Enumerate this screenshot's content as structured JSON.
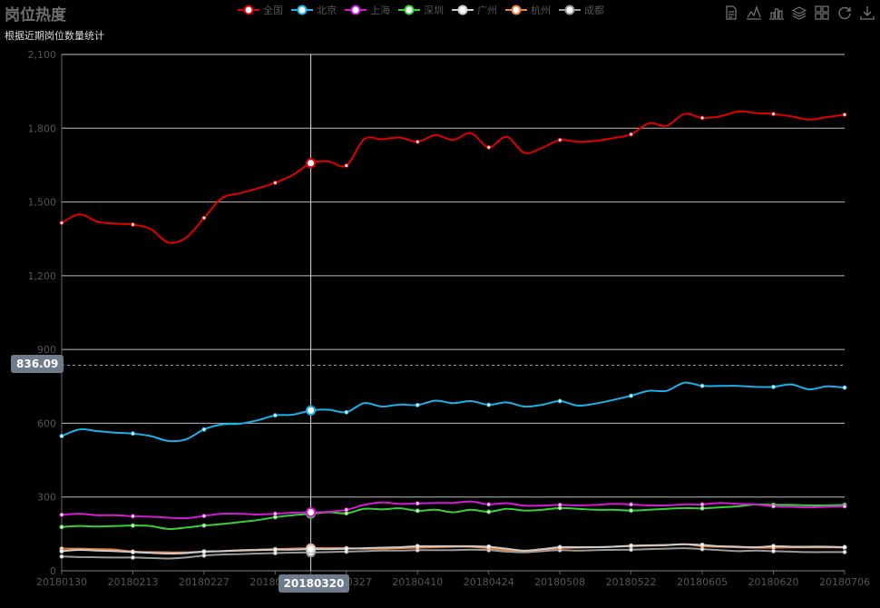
{
  "title": "岗位热度",
  "subtitle": "根据近期岗位数量统计",
  "toolbox": [
    "data-view-icon",
    "line-chart-icon",
    "bar-chart-icon",
    "stack-icon",
    "tiled-icon",
    "restore-icon",
    "download-icon"
  ],
  "pointer": {
    "y_label": "836.09",
    "x_label": "20180320"
  },
  "chart_data": {
    "type": "line",
    "smooth": true,
    "title": "岗位热度",
    "subtitle": "根据近期岗位数量统计",
    "xlabel": "",
    "ylabel": "",
    "ylim": [
      0,
      2100
    ],
    "yticks": [
      0,
      300,
      600,
      900,
      1200,
      1500,
      1800,
      2100
    ],
    "ytick_labels": [
      "0",
      "300",
      "600",
      "900",
      "1,200",
      "1,500",
      "1,800",
      "2,100"
    ],
    "grid": true,
    "legend_position": "top-center",
    "xtick_labels": [
      "20180130",
      "20180213",
      "20180227",
      "20180313",
      "20180320",
      "20180327",
      "20180410",
      "20180424",
      "20180508",
      "20180522",
      "20180605",
      "20180620",
      "20180706"
    ],
    "x": [
      "20180130",
      "20180203",
      "20180206",
      "20180209",
      "20180213",
      "20180216",
      "20180219",
      "20180223",
      "20180227",
      "20180302",
      "20180306",
      "20180309",
      "20180313",
      "20180316",
      "20180320",
      "20180323",
      "20180327",
      "20180330",
      "20180403",
      "20180406",
      "20180410",
      "20180413",
      "20180417",
      "20180420",
      "20180424",
      "20180427",
      "20180501",
      "20180504",
      "20180508",
      "20180511",
      "20180515",
      "20180518",
      "20180522",
      "20180525",
      "20180529",
      "20180601",
      "20180605",
      "20180608",
      "20180612",
      "20180616",
      "20180620",
      "20180623",
      "20180627",
      "20180630",
      "20180706"
    ],
    "series": [
      {
        "name": "全国",
        "color": "#e00000",
        "values": [
          1415,
          1450,
          1420,
          1412,
          1408,
          1390,
          1335,
          1355,
          1435,
          1515,
          1535,
          1555,
          1578,
          1610,
          1658,
          1665,
          1648,
          1755,
          1755,
          1762,
          1745,
          1772,
          1752,
          1780,
          1722,
          1765,
          1700,
          1720,
          1752,
          1745,
          1748,
          1760,
          1775,
          1820,
          1810,
          1858,
          1842,
          1848,
          1868,
          1862,
          1858,
          1848,
          1835,
          1845,
          1855
        ]
      },
      {
        "name": "北京",
        "color": "#1ab0e8",
        "values": [
          548,
          575,
          568,
          562,
          558,
          548,
          528,
          535,
          575,
          595,
          598,
          612,
          632,
          635,
          652,
          655,
          645,
          682,
          668,
          676,
          674,
          692,
          682,
          690,
          675,
          685,
          668,
          675,
          690,
          672,
          680,
          695,
          712,
          732,
          732,
          765,
          752,
          752,
          752,
          748,
          748,
          758,
          738,
          750,
          745
        ]
      },
      {
        "name": "上海",
        "color": "#d21bd2",
        "values": [
          228,
          232,
          226,
          226,
          222,
          220,
          216,
          214,
          223,
          232,
          232,
          229,
          232,
          236,
          238,
          240,
          248,
          268,
          278,
          272,
          274,
          276,
          276,
          282,
          270,
          275,
          265,
          265,
          268,
          266,
          268,
          272,
          270,
          266,
          266,
          270,
          270,
          276,
          272,
          270,
          262,
          260,
          258,
          260,
          262
        ]
      },
      {
        "name": "深圳",
        "color": "#38d038",
        "values": [
          178,
          182,
          180,
          182,
          184,
          182,
          170,
          176,
          184,
          190,
          198,
          206,
          218,
          226,
          232,
          238,
          234,
          252,
          250,
          254,
          244,
          248,
          238,
          248,
          240,
          252,
          245,
          248,
          255,
          252,
          248,
          248,
          245,
          248,
          252,
          255,
          254,
          258,
          262,
          270,
          268,
          268,
          266,
          266,
          268
        ]
      },
      {
        "name": "广州",
        "color": "#cccccc",
        "values": [
          80,
          85,
          82,
          80,
          76,
          73,
          70,
          72,
          78,
          80,
          82,
          84,
          86,
          86,
          88,
          88,
          90,
          92,
          94,
          96,
          100,
          100,
          100,
          100,
          98,
          90,
          82,
          88,
          96,
          96,
          96,
          98,
          102,
          104,
          105,
          108,
          105,
          100,
          98,
          96,
          100,
          98,
          98,
          98,
          96
        ]
      },
      {
        "name": "杭州",
        "color": "#e8823c",
        "values": [
          90,
          90,
          88,
          86,
          78,
          76,
          75,
          75,
          78,
          80,
          84,
          86,
          88,
          90,
          92,
          92,
          92,
          90,
          90,
          92,
          94,
          96,
          98,
          98,
          92,
          84,
          80,
          86,
          92,
          94,
          96,
          98,
          100,
          102,
          104,
          108,
          100,
          98,
          96,
          94,
          94,
          95,
          95,
          95,
          95
        ]
      },
      {
        "name": "成都",
        "color": "#999999",
        "values": [
          58,
          56,
          55,
          54,
          54,
          52,
          50,
          54,
          62,
          66,
          68,
          70,
          72,
          74,
          75,
          76,
          78,
          80,
          82,
          82,
          84,
          84,
          84,
          86,
          84,
          78,
          75,
          80,
          84,
          82,
          84,
          85,
          86,
          88,
          90,
          92,
          88,
          84,
          80,
          82,
          80,
          78,
          76,
          76,
          76
        ]
      }
    ]
  }
}
